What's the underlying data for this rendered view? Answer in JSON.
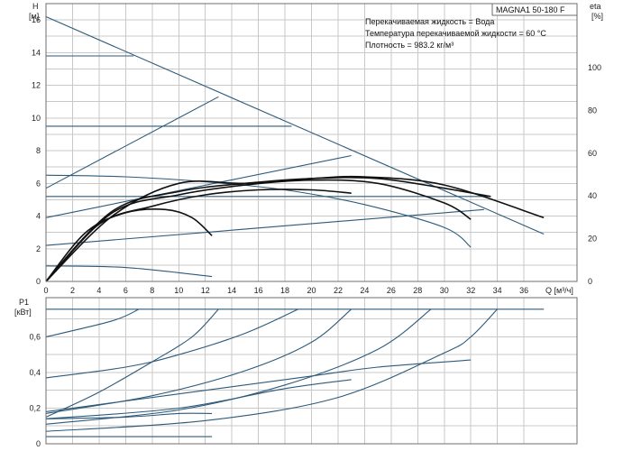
{
  "chart_data": [
    {
      "type": "line",
      "title": "",
      "ylabel": "H",
      "yunit": "[м]",
      "y2label": "eta",
      "y2unit": "[%]",
      "xlabel": "Q [м³/ч]",
      "xlim": [
        0,
        40
      ],
      "ylim": [
        0,
        17
      ],
      "y2lim": [
        0,
        130
      ],
      "xticks": [
        "0",
        "2",
        "4",
        "6",
        "8",
        "10",
        "12",
        "14",
        "16",
        "18",
        "20",
        "22",
        "24",
        "26",
        "28",
        "30",
        "32",
        "34",
        "36"
      ],
      "yticks": [
        "0",
        "2",
        "4",
        "6",
        "8",
        "10",
        "12",
        "14",
        "16"
      ],
      "y2ticks": [
        "0",
        "20",
        "40",
        "60",
        "80",
        "100"
      ],
      "grid": true,
      "model_label": "MAGNA1 50-180 F",
      "notes": [
        "Перекачиваемая жидкость = Вода",
        "Температура перекачиваемой жидкости = 60 °C",
        "Плотность = 983.2 кг/м³"
      ],
      "series": [
        {
          "kind": "head",
          "points": [
            [
              0,
              16.2
            ],
            [
              37.5,
              2.9
            ]
          ]
        },
        {
          "kind": "head",
          "points": [
            [
              0,
              13.8
            ],
            [
              6.6,
              13.8
            ]
          ]
        },
        {
          "kind": "head",
          "points": [
            [
              0,
              9.5
            ],
            [
              18.5,
              9.5
            ]
          ]
        },
        {
          "kind": "head",
          "points": [
            [
              0,
              6.5
            ],
            [
              6,
              6.4
            ],
            [
              12,
              6.1
            ],
            [
              18,
              5.6
            ],
            [
              24,
              4.7
            ],
            [
              30,
              3.3
            ],
            [
              32,
              2.1
            ]
          ]
        },
        {
          "kind": "head",
          "points": [
            [
              0,
              5.2
            ],
            [
              33.5,
              5.2
            ]
          ]
        },
        {
          "kind": "head",
          "points": [
            [
              0,
              0.95
            ],
            [
              6,
              0.85
            ],
            [
              12.5,
              0.3
            ]
          ]
        },
        {
          "kind": "head",
          "points": [
            [
              0,
              5.7
            ],
            [
              13,
              11.3
            ]
          ]
        },
        {
          "kind": "head",
          "points": [
            [
              0,
              3.9
            ],
            [
              23,
              7.7
            ]
          ]
        },
        {
          "kind": "head",
          "points": [
            [
              0,
              2.2
            ],
            [
              33,
              4.4
            ]
          ]
        },
        {
          "kind": "eff",
          "points": [
            [
              0,
              0
            ],
            [
              5,
              4
            ],
            [
              10,
              6
            ],
            [
              15,
              6
            ],
            [
              20,
              6.3
            ],
            [
              24,
              6.4
            ],
            [
              30,
              5.9
            ],
            [
              37.5,
              3.9
            ]
          ]
        },
        {
          "kind": "eff",
          "points": [
            [
              0,
              0
            ],
            [
              5,
              4.3
            ],
            [
              10,
              5.5
            ],
            [
              15,
              6
            ],
            [
              20,
              6.3
            ],
            [
              25,
              6.3
            ],
            [
              30,
              5.7
            ],
            [
              33.5,
              5.2
            ]
          ]
        },
        {
          "kind": "eff",
          "points": [
            [
              0,
              0
            ],
            [
              5,
              4.2
            ],
            [
              10,
              5.3
            ],
            [
              15,
              5.9
            ],
            [
              20,
              6.2
            ],
            [
              25,
              6
            ],
            [
              30,
              4.8
            ],
            [
              32,
              3.8
            ]
          ]
        },
        {
          "kind": "eff",
          "points": [
            [
              0,
              0
            ],
            [
              3,
              3
            ],
            [
              6,
              4.2
            ],
            [
              9,
              4.4
            ],
            [
              11,
              3.9
            ],
            [
              12.5,
              2.8
            ]
          ]
        },
        {
          "kind": "eff",
          "points": [
            [
              0,
              0
            ],
            [
              4,
              3.5
            ],
            [
              8,
              4.6
            ],
            [
              12,
              5.3
            ],
            [
              16,
              5.6
            ],
            [
              20,
              5.6
            ],
            [
              23,
              5.4
            ]
          ]
        }
      ]
    },
    {
      "type": "line",
      "title": "",
      "ylabel": "P1",
      "yunit": "[кВт]",
      "xlim": [
        0,
        40
      ],
      "ylim": [
        0,
        0.82
      ],
      "yticks": [
        "0",
        "0,2",
        "0,4",
        "0,6"
      ],
      "grid": true,
      "series": [
        {
          "points": [
            [
              0,
              0.755
            ],
            [
              37.5,
              0.755
            ]
          ]
        },
        {
          "points": [
            [
              0,
              0.6
            ],
            [
              5,
              0.69
            ],
            [
              7,
              0.755
            ]
          ]
        },
        {
          "points": [
            [
              0,
              0.15
            ],
            [
              4,
              0.29
            ],
            [
              8,
              0.46
            ],
            [
              11,
              0.6
            ],
            [
              13,
              0.755
            ]
          ]
        },
        {
          "points": [
            [
              0,
              0.37
            ],
            [
              6,
              0.43
            ],
            [
              10,
              0.5
            ],
            [
              15,
              0.62
            ],
            [
              19,
              0.755
            ]
          ]
        },
        {
          "points": [
            [
              0,
              0.17
            ],
            [
              8,
              0.27
            ],
            [
              15,
              0.41
            ],
            [
              20,
              0.57
            ],
            [
              23,
              0.755
            ]
          ]
        },
        {
          "points": [
            [
              0,
              0.11
            ],
            [
              10,
              0.19
            ],
            [
              18,
              0.33
            ],
            [
              25,
              0.53
            ],
            [
              29,
              0.755
            ]
          ]
        },
        {
          "points": [
            [
              0,
              0.07
            ],
            [
              12,
              0.13
            ],
            [
              22,
              0.26
            ],
            [
              30,
              0.51
            ],
            [
              32,
              0.6
            ],
            [
              34,
              0.755
            ]
          ]
        },
        {
          "points": [
            [
              0,
              0.18
            ],
            [
              10,
              0.28
            ],
            [
              20,
              0.38
            ],
            [
              25,
              0.43
            ],
            [
              32,
              0.47
            ]
          ]
        },
        {
          "points": [
            [
              0,
              0.14
            ],
            [
              10,
              0.2
            ],
            [
              18,
              0.31
            ],
            [
              23,
              0.36
            ]
          ]
        },
        {
          "points": [
            [
              0,
              0.14
            ],
            [
              6,
              0.15
            ],
            [
              10,
              0.17
            ],
            [
              12.5,
              0.17
            ]
          ]
        },
        {
          "points": [
            [
              0,
              0.04
            ],
            [
              6,
              0.04
            ],
            [
              12.5,
              0.04
            ]
          ]
        }
      ]
    }
  ]
}
